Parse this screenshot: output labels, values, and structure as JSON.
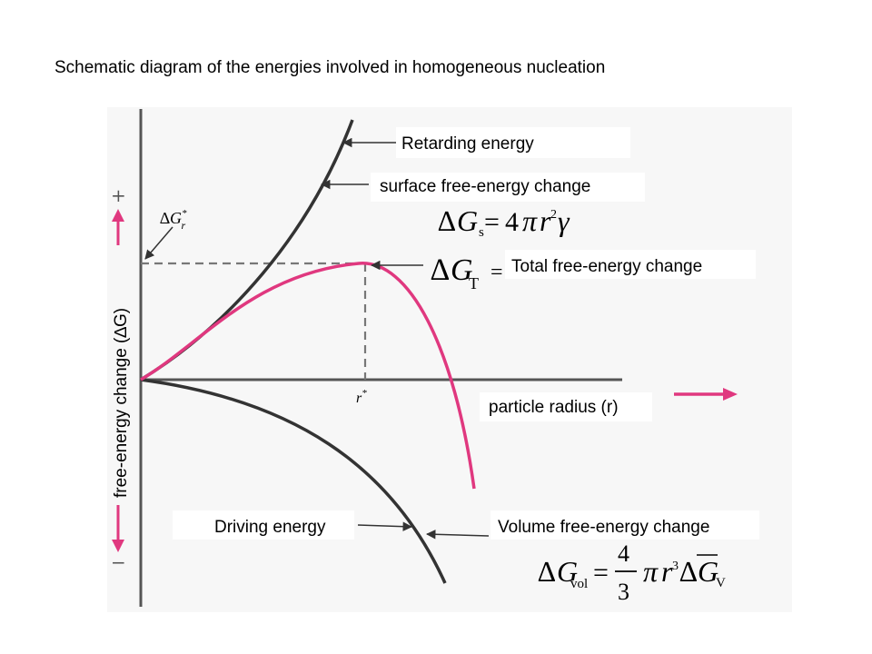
{
  "title": "Schematic diagram of the energies involved in homogeneous nucleation",
  "axes": {
    "y_label": "free-energy change (∆G)",
    "x_label": "particle radius (r)",
    "plus_sign": "+",
    "minus_sign": "−",
    "critical_radius": "r*",
    "critical_energy": "∆G*r"
  },
  "curves": {
    "retarding_energy": "Retarding energy",
    "surface_change": "surface free-energy change",
    "total_change": "Total free-energy change",
    "driving_energy": "Driving energy",
    "volume_change": "Volume free-energy change"
  },
  "colors": {
    "accent": "#e0387f",
    "curve_dark": "#333333",
    "axis": "#555555"
  }
}
